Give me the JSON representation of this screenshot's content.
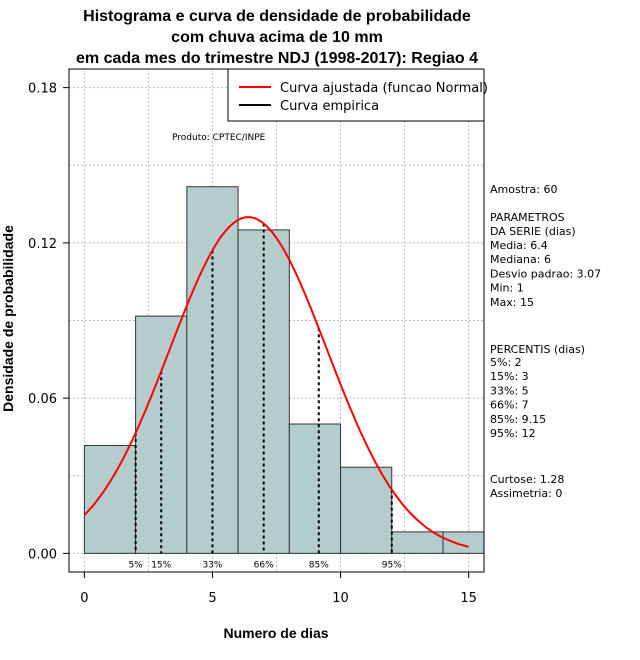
{
  "chart_data": {
    "type": "bar",
    "title_lines": [
      "Histograma e curva de densidade de probabilidade",
      "com chuva acima de 10 mm",
      "em cada mes do trimestre NDJ (1998-2017): Regiao 4"
    ],
    "xlabel": "Numero de dias",
    "ylabel": "Densidade de probabilidade",
    "xlim": [
      -0.6,
      15.6
    ],
    "ylim": [
      -0.0072,
      0.1872
    ],
    "xticks": [
      0,
      5,
      10,
      15
    ],
    "yticks": [
      0.0,
      0.06,
      0.12,
      0.18
    ],
    "ytick_labels": [
      "0.00",
      "0.06",
      "0.12",
      "0.18"
    ],
    "grid": true,
    "bar_color": "#b5cccc",
    "bins": [
      {
        "start": 0,
        "end": 2,
        "density": 0.0417
      },
      {
        "start": 2,
        "end": 4,
        "density": 0.0917
      },
      {
        "start": 4,
        "end": 6,
        "density": 0.1417
      },
      {
        "start": 6,
        "end": 8,
        "density": 0.125
      },
      {
        "start": 8,
        "end": 10,
        "density": 0.05
      },
      {
        "start": 10,
        "end": 12,
        "density": 0.0333
      },
      {
        "start": 12,
        "end": 14,
        "density": 0.0083
      },
      {
        "start": 14,
        "end": 16,
        "density": 0.0083
      }
    ],
    "normal_curve": {
      "name": "Curva ajustada (funcao Normal)",
      "color": "#ff0000",
      "mean": 6.4,
      "sd": 3.07,
      "x_range": [
        0,
        15
      ]
    },
    "empirical_curve": {
      "name": "Curva empirica",
      "color": "#000000"
    },
    "legend_position": "top-right",
    "percentiles": [
      {
        "label": "5%",
        "x": 2
      },
      {
        "label": "15%",
        "x": 3
      },
      {
        "label": "33%",
        "x": 5
      },
      {
        "label": "66%",
        "x": 7
      },
      {
        "label": "85%",
        "x": 9.15
      },
      {
        "label": "95%",
        "x": 12
      }
    ],
    "annotation": "Produto: CPTEC/INPE"
  },
  "side_panel": {
    "sample": "Amostra: 60",
    "params_title": [
      " PARAMETROS",
      "DA SERIE (dias)"
    ],
    "params": [
      "  Media: 6.4",
      "  Mediana: 6",
      "  Desvio padrao: 3.07",
      "  Min: 1",
      "  Max: 15"
    ],
    "percentis_title": "PERCENTIS (dias)",
    "percentis": [
      "   5%: 2",
      "   15%: 3",
      "   33%: 5",
      "   66%: 7",
      "   85%: 9.15",
      "   95%: 12"
    ],
    "shape": [
      "   Curtose: 1.28",
      "     Assimetria: 0"
    ]
  }
}
